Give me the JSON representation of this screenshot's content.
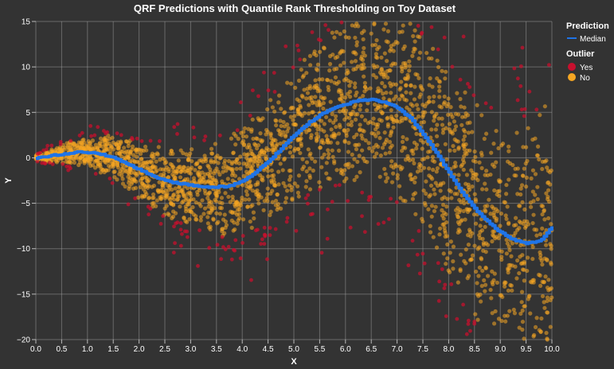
{
  "chart_data": {
    "type": "scatter",
    "title": "QRF Predictions with Quantile Rank Thresholding on Toy Dataset",
    "xlabel": "X",
    "ylabel": "Y",
    "xlim": [
      0,
      10
    ],
    "ylim": [
      -20,
      15
    ],
    "x_ticks": [
      "0.0",
      "0.5",
      "1.0",
      "1.5",
      "2.0",
      "2.5",
      "3.0",
      "3.5",
      "4.0",
      "4.5",
      "5.0",
      "5.5",
      "6.0",
      "6.5",
      "7.0",
      "7.5",
      "8.0",
      "8.5",
      "9.0",
      "9.5",
      "10.0"
    ],
    "y_ticks": [
      "15",
      "10",
      "5",
      "0",
      "−5",
      "−10",
      "−15",
      "−20"
    ],
    "grid": true,
    "legend_placement": "top-right",
    "legend": {
      "prediction_title": "Prediction",
      "prediction_items": [
        {
          "label": "Median",
          "color": "#1f74e8"
        }
      ],
      "outlier_title": "Outlier",
      "outlier_items": [
        {
          "label": "Yes",
          "color": "#c8102e"
        },
        {
          "label": "No",
          "color": "#f5a623"
        }
      ]
    },
    "colors": {
      "median": "#1f74e8",
      "outlier_yes": "#c8102e",
      "outlier_no": "#f5a623"
    },
    "series": [
      {
        "name": "Median",
        "type": "line",
        "x": [
          0,
          0.25,
          0.5,
          0.75,
          1,
          1.25,
          1.5,
          1.75,
          2,
          2.25,
          2.5,
          2.75,
          3,
          3.25,
          3.5,
          3.75,
          4,
          4.25,
          4.5,
          4.75,
          5,
          5.25,
          5.5,
          5.75,
          6,
          6.25,
          6.5,
          6.75,
          7,
          7.25,
          7.5,
          7.75,
          8,
          8.25,
          8.5,
          8.75,
          9,
          9.25,
          9.5,
          9.75,
          10
        ],
        "y": [
          0,
          0.2,
          0.4,
          0.6,
          0.6,
          0.4,
          0,
          -0.6,
          -1.3,
          -2,
          -2.5,
          -2.8,
          -3,
          -3.2,
          -3.2,
          -3.1,
          -2.6,
          -1.6,
          -0.4,
          1,
          2.5,
          3.7,
          4.7,
          5.4,
          5.9,
          6.3,
          6.4,
          6.1,
          5.5,
          4.4,
          2.6,
          0.6,
          -1.6,
          -3.8,
          -5.6,
          -7,
          -8.2,
          -9,
          -9.4,
          -9.2,
          -7.6
        ]
      }
    ]
  }
}
